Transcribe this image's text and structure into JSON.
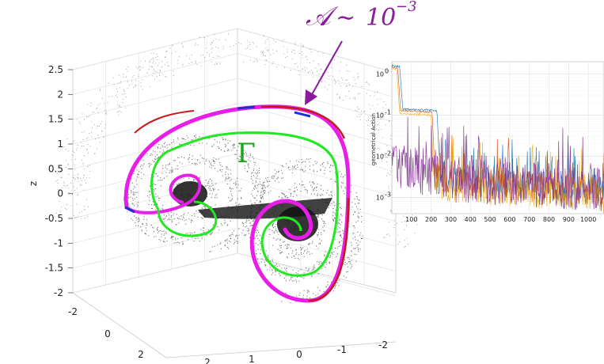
{
  "annotation": {
    "symbol": "𝒜",
    "relation": "∼",
    "base": "10",
    "exponent": "−3",
    "color": "#8b1a9e"
  },
  "gamma_label": "Γ",
  "chart_data": [
    {
      "type": "scatter",
      "subtype": "3d-attractor",
      "zlabel": "z",
      "z_ticks": [
        "2.5",
        "2",
        "1.5",
        "1",
        "0.5",
        "0",
        "-0.5",
        "-1",
        "-1.5",
        "-2"
      ],
      "y_ticks": [
        "-2",
        "0",
        "2"
      ],
      "x_ticks": [
        "-2",
        "-1",
        "0",
        "1",
        "2"
      ],
      "grid": true,
      "curves": [
        {
          "name": "",
          "color": "#e81ee8",
          "role": "periodic-orbit-outer"
        },
        {
          "name": "Γ",
          "color": "#22e822",
          "role": "loop"
        },
        {
          "name": "",
          "color": "#c41a1a",
          "role": "orbit-segments"
        },
        {
          "name": "",
          "color": "#1a33cc",
          "role": "orbit-segments"
        },
        {
          "name": "",
          "color": "#000000",
          "role": "trajectory-cloud"
        }
      ]
    },
    {
      "type": "line",
      "ylabel": "geometrical Action",
      "yscale": "log",
      "ylim": [
        0.0004,
        2
      ],
      "y_ticks": [
        {
          "value": 1,
          "base": "10",
          "exp": "0"
        },
        {
          "value": 0.1,
          "base": "10",
          "exp": "-1"
        },
        {
          "value": 0.01,
          "base": "10",
          "exp": "-2"
        },
        {
          "value": 0.001,
          "base": "10",
          "exp": "-3"
        }
      ],
      "xlim": [
        0,
        1080
      ],
      "x_ticks": [
        100,
        200,
        300,
        400,
        500,
        600,
        700,
        800,
        900,
        1000
      ],
      "grid": true,
      "series": [
        {
          "name": "",
          "color": "#1f77b4",
          "plateaus": [
            [
              0,
              1.6
            ],
            [
              40,
              1.5
            ],
            [
              55,
              0.14
            ],
            [
              230,
              0.13
            ],
            [
              245,
              0.003
            ],
            [
              1080,
              0.0015
            ]
          ]
        },
        {
          "name": "",
          "color": "#d95319",
          "plateaus": [
            [
              0,
              1.5
            ],
            [
              30,
              1.4
            ],
            [
              45,
              0.13
            ],
            [
              205,
              0.12
            ],
            [
              220,
              0.003
            ],
            [
              1080,
              0.0013
            ]
          ]
        },
        {
          "name": "",
          "color": "#edb120",
          "plateaus": [
            [
              0,
              1.4
            ],
            [
              25,
              1.3
            ],
            [
              40,
              0.11
            ],
            [
              200,
              0.1
            ],
            [
              215,
              0.002
            ],
            [
              1080,
              0.001
            ]
          ]
        },
        {
          "name": "",
          "color": "#7e2f8e",
          "plateaus": [
            [
              0,
              0.008
            ],
            [
              60,
              0.006
            ],
            [
              300,
              0.003
            ],
            [
              1080,
              0.0018
            ]
          ]
        }
      ]
    }
  ]
}
